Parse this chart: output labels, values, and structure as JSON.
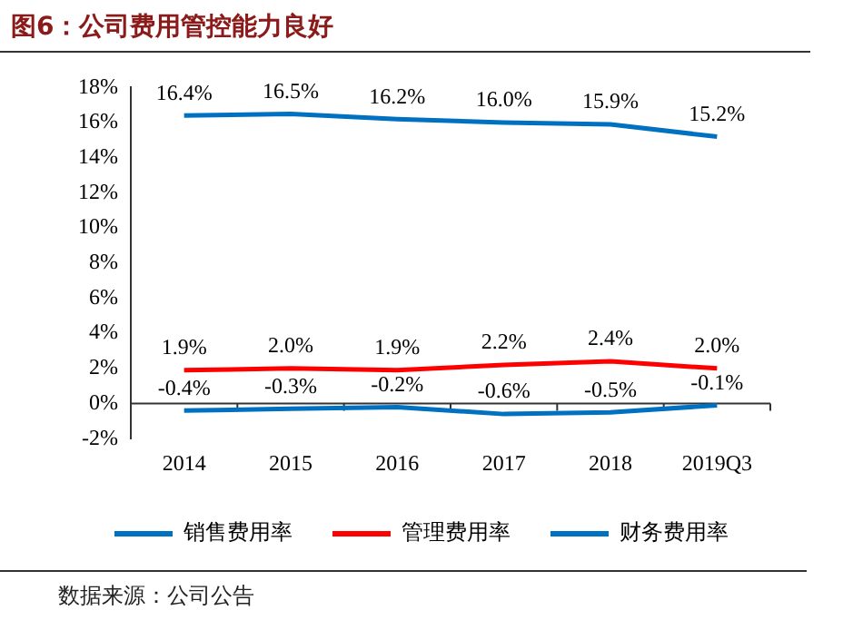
{
  "chart_data": {
    "type": "line",
    "title": "图6：公司费用管控能力良好",
    "annotations": [
      "数据来源：公司公告"
    ],
    "categories": [
      "2014",
      "2015",
      "2016",
      "2017",
      "2018",
      "2019Q3"
    ],
    "series": [
      {
        "name": "销售费用率",
        "color": "#0070c0",
        "values": [
          16.4,
          16.5,
          16.2,
          16.0,
          15.9,
          15.2
        ],
        "value_labels": [
          "16.4%",
          "16.5%",
          "16.2%",
          "16.0%",
          "15.9%",
          "15.2%"
        ]
      },
      {
        "name": "管理费用率",
        "color": "#ff0000",
        "values": [
          1.9,
          2.0,
          1.9,
          2.2,
          2.4,
          2.0
        ],
        "value_labels": [
          "1.9%",
          "2.0%",
          "1.9%",
          "2.2%",
          "2.4%",
          "2.0%"
        ]
      },
      {
        "name": "财务费用率",
        "color": "#0070c0",
        "values": [
          -0.4,
          -0.3,
          -0.2,
          -0.6,
          -0.5,
          -0.1
        ],
        "value_labels": [
          "-0.4%",
          "-0.3%",
          "-0.2%",
          "-0.6%",
          "-0.5%",
          "-0.1%"
        ]
      }
    ],
    "ylim": [
      -2,
      18
    ],
    "yticks": [
      {
        "value": -2,
        "label": "-2%"
      },
      {
        "value": 0,
        "label": "0%"
      },
      {
        "value": 2,
        "label": "2%"
      },
      {
        "value": 4,
        "label": "4%"
      },
      {
        "value": 6,
        "label": "6%"
      },
      {
        "value": 8,
        "label": "8%"
      },
      {
        "value": 10,
        "label": "10%"
      },
      {
        "value": 12,
        "label": "12%"
      },
      {
        "value": 14,
        "label": "14%"
      },
      {
        "value": 16,
        "label": "16%"
      },
      {
        "value": 18,
        "label": "18%"
      }
    ],
    "grid": false,
    "legend": "bottom",
    "marker": "none",
    "line_style": "solid"
  }
}
